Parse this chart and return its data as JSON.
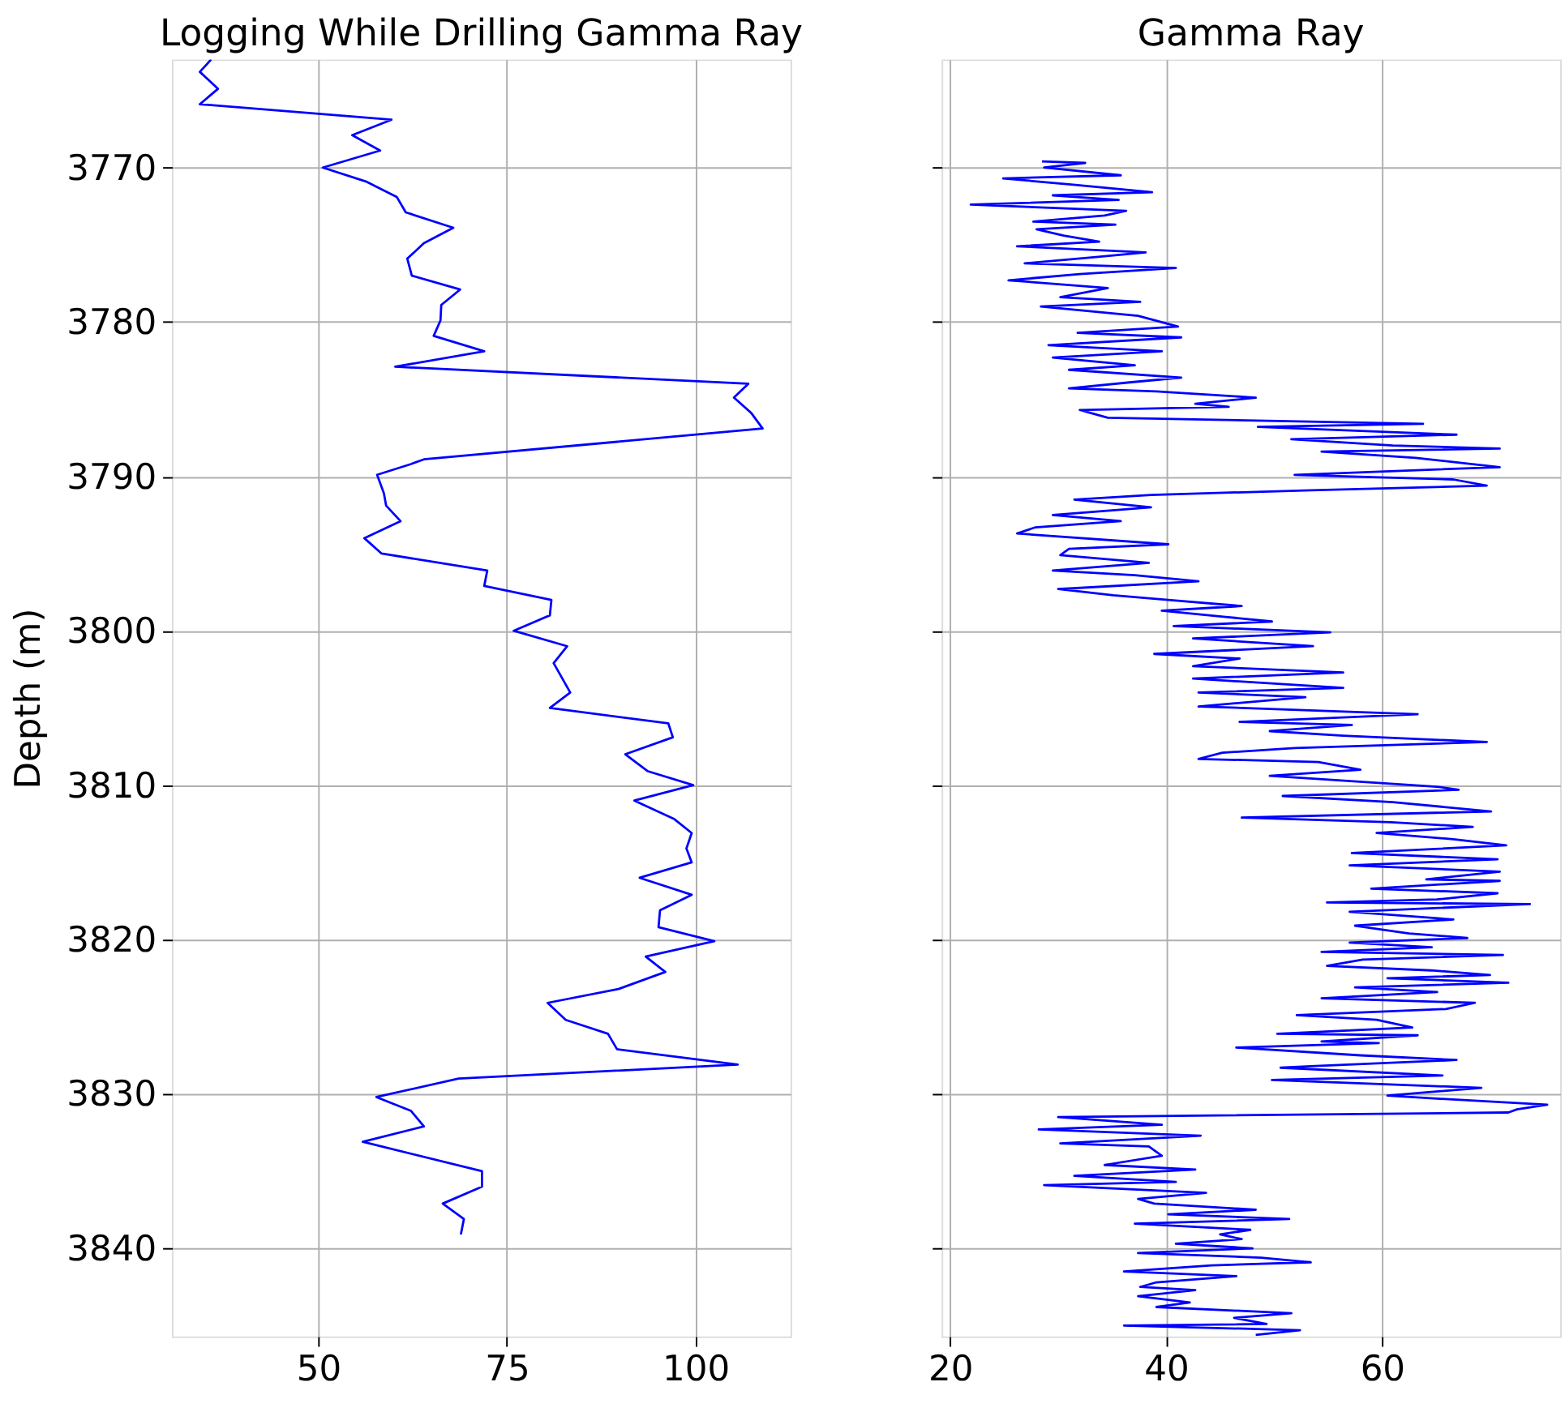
{
  "chart_data": [
    {
      "type": "line",
      "title": "Logging While Drilling Gamma Ray",
      "ylabel": "Depth (m)",
      "orientation": "horizontal",
      "grid": true,
      "xlim": [
        30.6,
        112.6
      ],
      "xticks": [
        50,
        75,
        100
      ],
      "ylim": [
        3845.7,
        3763
      ],
      "yticks": [
        3770,
        3780,
        3790,
        3800,
        3810,
        3820,
        3830,
        3840
      ],
      "series": [
        {
          "color": "#0000ff",
          "x": [
            3763,
            3763.8,
            3764.9,
            3765.9,
            3766.9,
            3767.9,
            3768.9,
            3770.0,
            3770.9,
            3771.9,
            3772.9,
            3773.9,
            3774.9,
            3775.9,
            3777.0,
            3777.9,
            3778.9,
            3779.9,
            3780.9,
            3781.9,
            3782.9,
            3784.0,
            3784.9,
            3785.9,
            3786.9,
            3788.9,
            3789.2,
            3789.9,
            3791.1,
            3791.9,
            3792.9,
            3794.0,
            3795.0,
            3796.1,
            3797.1,
            3798.0,
            3799.0,
            3800.0,
            3801.0,
            3802.1,
            3804.0,
            3805.0,
            3806.0,
            3806.9,
            3808.0,
            3809.1,
            3810.0,
            3811.0,
            3812.2,
            3813.1,
            3814.1,
            3815.0,
            3816.0,
            3817.1,
            3818.1,
            3819.2,
            3820.1,
            3821.1,
            3822.1,
            3823.2,
            3824.1,
            3825.2,
            3826.1,
            3827.1,
            3828.1,
            3829.0,
            3830.2,
            3831.1,
            3832.1,
            3833.1,
            3835.0,
            3836.0,
            3837.1,
            3838.1,
            3839.1
          ],
          "values": [
            35.8,
            34.3,
            36.7,
            34.3,
            59.7,
            54.5,
            58.2,
            50.6,
            56.3,
            60.4,
            61.6,
            67.9,
            64.0,
            61.8,
            62.4,
            68.8,
            66.3,
            66.2,
            65.3,
            72.0,
            60.2,
            107.0,
            105.1,
            107.4,
            108.9,
            64.0,
            62.3,
            57.8,
            58.7,
            59.0,
            60.9,
            56.1,
            58.4,
            72.4,
            72.0,
            80.9,
            80.7,
            75.9,
            83.0,
            81.2,
            83.4,
            80.7,
            96.4,
            97.0,
            90.7,
            93.7,
            99.7,
            91.9,
            97.2,
            99.5,
            98.8,
            99.5,
            92.6,
            99.5,
            95.3,
            95.1,
            102.5,
            93.4,
            96.0,
            89.8,
            80.4,
            82.8,
            88.4,
            89.6,
            105.6,
            68.6,
            57.7,
            62.3,
            64.0,
            55.9,
            71.7,
            71.7,
            66.5,
            69.3,
            68.9
          ]
        }
      ]
    },
    {
      "type": "line",
      "title": "Gamma Ray",
      "orientation": "horizontal",
      "grid": true,
      "tick_labels": "x",
      "xlim": [
        19.2,
        76.5
      ],
      "xticks": [
        20,
        40,
        60
      ],
      "ylim": [
        3845.7,
        3763
      ],
      "yticks": [
        3770,
        3780,
        3790,
        3800,
        3810,
        3820,
        3830,
        3840
      ],
      "series": [
        {
          "color": "#0000ff",
          "x": [
            3769.6,
            3769.7,
            3770.0,
            3770.5,
            3770.7,
            3771.1,
            3771.6,
            3771.8,
            3772.1,
            3772.4,
            3772.8,
            3773.1,
            3773.5,
            3773.7,
            3774.0,
            3774.4,
            3774.8,
            3775.1,
            3775.5,
            3775.8,
            3776.2,
            3776.5,
            3776.9,
            3777.3,
            3777.8,
            3778.4,
            3778.7,
            3779.0,
            3779.6,
            3780.3,
            3780.7,
            3781.0,
            3781.5,
            3781.9,
            3782.3,
            3782.8,
            3783.1,
            3783.6,
            3783.9,
            3784.3,
            3784.5,
            3784.9,
            3785.3,
            3785.5,
            3785.7,
            3786.2,
            3786.6,
            3786.8,
            3787.3,
            3787.6,
            3788.0,
            3788.2,
            3788.4,
            3788.8,
            3789.4,
            3789.9,
            3790.2,
            3790.6,
            3790.9,
            3791.2,
            3791.5,
            3792.0,
            3792.5,
            3792.9,
            3793.3,
            3793.7,
            3794.4,
            3794.7,
            3795.1,
            3795.6,
            3796.1,
            3796.4,
            3796.8,
            3797.3,
            3797.7,
            3798.0,
            3798.4,
            3798.7,
            3799.1,
            3799.4,
            3799.7,
            3800.1,
            3800.5,
            3801.0,
            3801.5,
            3801.8,
            3802.3,
            3802.7,
            3803.1,
            3803.7,
            3804.0,
            3804.3,
            3804.9,
            3805.4,
            3805.9,
            3806.1,
            3806.5,
            3806.8,
            3807.2,
            3807.6,
            3807.9,
            3808.3,
            3808.5,
            3809.0,
            3809.4,
            3809.8,
            3810.1,
            3810.3,
            3810.7,
            3811.1,
            3811.7,
            3812.1,
            3812.4,
            3812.7,
            3813.1,
            3813.5,
            3813.9,
            3814.4,
            3814.8,
            3815.2,
            3815.6,
            3816.1,
            3816.2,
            3816.7,
            3817.0,
            3817.4,
            3817.6,
            3817.7,
            3818.2,
            3818.7,
            3819.1,
            3819.6,
            3819.9,
            3820.2,
            3820.5,
            3820.8,
            3821.0,
            3821.3,
            3821.7,
            3822.0,
            3822.3,
            3822.5,
            3822.8,
            3823.1,
            3823.4,
            3823.8,
            3824.1,
            3824.5,
            3824.9,
            3825.2,
            3825.7,
            3826.1,
            3826.2,
            3826.6,
            3826.7,
            3827.0,
            3827.5,
            3827.8,
            3828.2,
            3828.3,
            3828.8,
            3829.1,
            3829.6,
            3830.1,
            3830.3,
            3830.7,
            3831.0,
            3831.2,
            3831.5,
            3832.0,
            3832.3,
            3832.7,
            3833.2,
            3833.4,
            3834.0,
            3834.6,
            3834.9,
            3835.3,
            3835.7,
            3835.9,
            3836.4,
            3836.8,
            3837.1,
            3837.5,
            3837.8,
            3838.1,
            3838.4,
            3838.8,
            3839.1,
            3839.4,
            3839.7,
            3840.0,
            3840.3,
            3840.6,
            3840.9,
            3841.1,
            3841.5,
            3841.8,
            3842.2,
            3842.5,
            3842.7,
            3843.1,
            3843.5,
            3843.8,
            3844.2,
            3844.5,
            3844.9,
            3845.0,
            3845.3,
            3845.6
          ],
          "values": [
            28.5,
            32.5,
            28.7,
            35.8,
            24.9,
            31.2,
            38.7,
            29.5,
            35.6,
            21.9,
            36.3,
            34.3,
            27.7,
            35.3,
            28.0,
            30.5,
            33.8,
            26.2,
            38.1,
            33.5,
            26.9,
            40.9,
            32.0,
            25.4,
            34.6,
            30.2,
            37.6,
            28.4,
            37.4,
            41.1,
            31.8,
            41.4,
            29.1,
            39.6,
            29.5,
            37.1,
            31.0,
            41.4,
            36.8,
            31.0,
            39.1,
            48.3,
            42.7,
            45.8,
            32.0,
            34.6,
            63.8,
            48.5,
            66.9,
            51.6,
            61.0,
            70.9,
            54.4,
            63.1,
            70.9,
            51.9,
            66.6,
            69.7,
            53.4,
            38.6,
            31.5,
            38.6,
            29.5,
            35.8,
            27.9,
            26.2,
            40.2,
            31.0,
            30.2,
            38.4,
            29.5,
            37.1,
            43.0,
            30.0,
            35.1,
            40.2,
            47.0,
            39.6,
            45.5,
            49.8,
            40.7,
            55.2,
            42.5,
            53.6,
            38.9,
            46.8,
            42.5,
            56.4,
            42.5,
            56.4,
            43.0,
            52.9,
            43.0,
            63.3,
            46.8,
            57.2,
            49.6,
            56.4,
            69.7,
            51.9,
            45.2,
            43.0,
            54.1,
            58.0,
            49.6,
            58.5,
            65.1,
            67.1,
            50.8,
            61.0,
            70.1,
            47.0,
            60.8,
            68.4,
            59.5,
            66.6,
            71.5,
            57.2,
            70.7,
            57.0,
            70.9,
            64.1,
            70.9,
            59.0,
            70.7,
            65.1,
            54.9,
            73.7,
            57.0,
            66.6,
            57.5,
            62.5,
            67.9,
            57.0,
            64.6,
            54.4,
            71.2,
            58.2,
            54.9,
            64.6,
            70.0,
            60.5,
            71.7,
            57.5,
            65.1,
            54.4,
            68.6,
            65.9,
            52.1,
            59.5,
            62.8,
            50.3,
            63.3,
            54.4,
            59.7,
            46.5,
            58.0,
            66.9,
            53.4,
            50.6,
            65.6,
            49.8,
            69.2,
            60.5,
            65.1,
            75.3,
            72.5,
            71.7,
            30.0,
            39.6,
            28.2,
            43.2,
            30.2,
            38.4,
            39.6,
            34.3,
            42.7,
            31.5,
            40.9,
            28.7,
            43.7,
            37.4,
            38.9,
            48.3,
            40.2,
            51.4,
            37.1,
            47.8,
            45.0,
            47.0,
            40.9,
            48.0,
            37.4,
            48.8,
            53.4,
            44.2,
            36.1,
            46.5,
            39.1,
            37.6,
            42.7,
            37.4,
            42.2,
            39.1,
            51.6,
            46.3,
            49.3,
            36.1,
            52.4,
            48.3
          ]
        }
      ]
    }
  ]
}
